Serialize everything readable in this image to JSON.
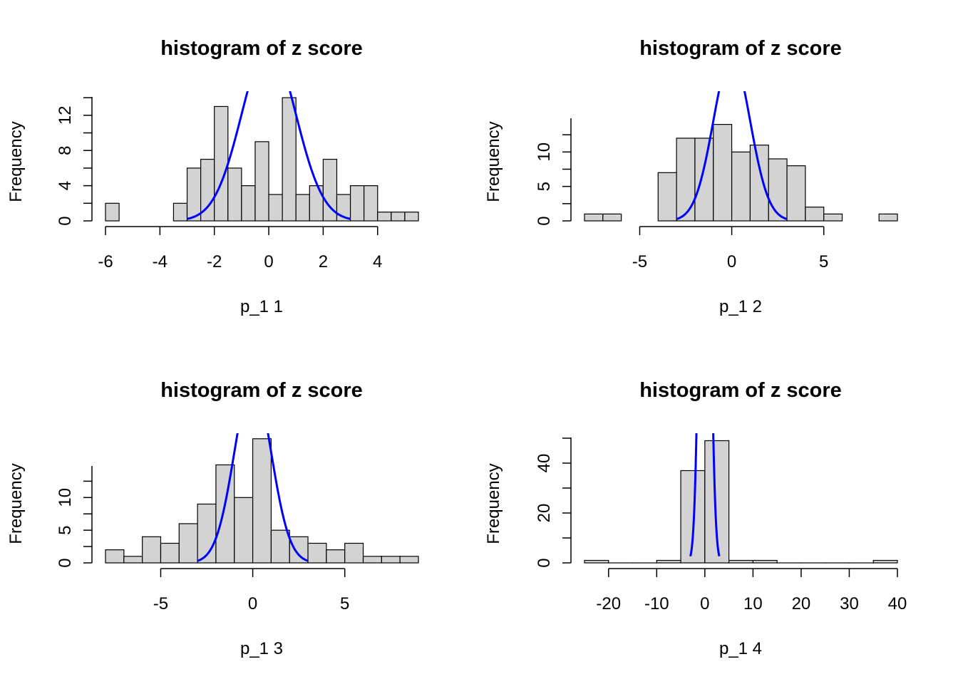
{
  "chart_data": [
    {
      "type": "bar",
      "title": "histogram of z score",
      "xlabel": "p_1 1",
      "ylabel": "Frequency",
      "xlim": [
        -6,
        5.5
      ],
      "ylim": [
        0,
        14
      ],
      "xticks": [
        -6,
        -4,
        -2,
        0,
        2,
        4
      ],
      "yticks": [
        0,
        4,
        8,
        12
      ],
      "bin_width": 0.5,
      "bins_start": [
        -6,
        -3.5,
        -3,
        -2.5,
        -2,
        -1.5,
        -1,
        -0.5,
        0,
        0.5,
        1,
        1.5,
        2,
        2.5,
        3,
        3.5,
        4,
        4.5,
        5
      ],
      "values": [
        2,
        2,
        6,
        7,
        13,
        6,
        4,
        9,
        3,
        14,
        3,
        4,
        7,
        3,
        4,
        4,
        1,
        1,
        1
      ],
      "curve": {
        "color": "#0000ff",
        "x_range": [
          -3,
          3
        ],
        "scale": 50
      }
    },
    {
      "type": "bar",
      "title": "histogram of z score",
      "xlabel": "p_1 2",
      "ylabel": "Frequency",
      "xlim": [
        -8,
        9
      ],
      "ylim": [
        0,
        15
      ],
      "xticks": [
        -5,
        0,
        5
      ],
      "yticks": [
        0,
        5,
        10
      ],
      "bin_width": 1,
      "bins_start": [
        -8,
        -7,
        -4,
        -3,
        -2,
        -1,
        0,
        1,
        2,
        3,
        4,
        5,
        8
      ],
      "values": [
        1,
        1,
        7,
        12,
        12,
        14,
        10,
        11,
        9,
        8,
        2,
        1,
        1
      ],
      "curve": {
        "color": "#0000ff",
        "x_range": [
          -3,
          3
        ],
        "scale": 60
      }
    },
    {
      "type": "bar",
      "title": "histogram of z score",
      "xlabel": "p_1 3",
      "ylabel": "Frequency",
      "xlim": [
        -8,
        9
      ],
      "ylim": [
        0,
        15
      ],
      "xticks": [
        -5,
        0,
        5
      ],
      "yticks": [
        0,
        5,
        10
      ],
      "bin_width": 1,
      "bins_start": [
        -8,
        -7,
        -6,
        -5,
        -4,
        -3,
        -2,
        -1,
        0,
        1,
        2,
        3,
        4,
        5,
        6,
        7,
        8
      ],
      "values": [
        2,
        1,
        4,
        3,
        6,
        9,
        15,
        10,
        19,
        5,
        4,
        3,
        2,
        3,
        1,
        1,
        1
      ],
      "curve": {
        "color": "#0000ff",
        "x_range": [
          -3,
          3
        ],
        "scale": 70
      }
    },
    {
      "type": "bar",
      "title": "histogram of z score",
      "xlabel": "p_1 4",
      "ylabel": "Frequency",
      "xlim": [
        -25,
        40
      ],
      "ylim": [
        0,
        50
      ],
      "xticks": [
        -20,
        -10,
        0,
        10,
        20,
        30,
        40
      ],
      "yticks": [
        0,
        20,
        40
      ],
      "bin_width": 5,
      "bins_start": [
        -25,
        -20,
        -15,
        -10,
        -5,
        0,
        5,
        10,
        15,
        20,
        25,
        30,
        35
      ],
      "values": [
        1,
        0,
        0,
        1,
        37,
        49,
        1,
        1,
        0,
        0,
        0,
        0,
        1
      ],
      "curve": {
        "color": "#0000ff",
        "x_range": [
          -3,
          3
        ],
        "scale": 600
      }
    }
  ]
}
